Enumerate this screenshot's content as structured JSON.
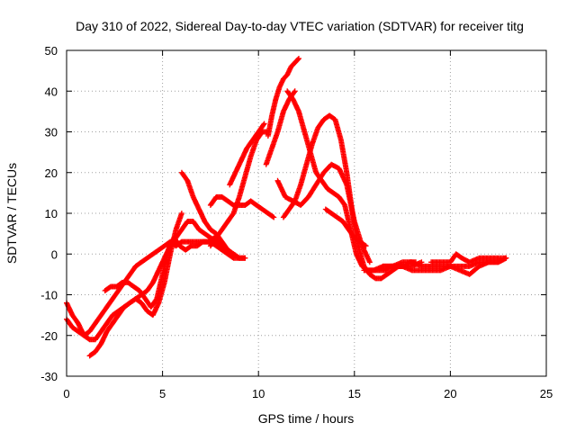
{
  "chart_data": {
    "type": "scatter",
    "title": "Day 310 of 2022, Sidereal Day-to-day VTEC variation (SDTVAR) for receiver titg",
    "xlabel": "GPS time / hours",
    "ylabel": "SDTVAR / TECUs",
    "xlim": [
      0,
      25
    ],
    "ylim": [
      -30,
      50
    ],
    "xticks": [
      0,
      5,
      10,
      15,
      20,
      25
    ],
    "yticks": [
      -30,
      -20,
      -10,
      0,
      10,
      20,
      30,
      40,
      50
    ],
    "grid": true,
    "marker": "plus",
    "color": "#ff0000",
    "series": [
      {
        "name": "track-1",
        "x": [
          0.0,
          0.3,
          0.6,
          0.9,
          1.2,
          1.5,
          1.8,
          2.1,
          2.4,
          2.7,
          3.0,
          3.3,
          3.6,
          3.9,
          4.2,
          4.5,
          4.8,
          5.1,
          5.4,
          5.7,
          6.0,
          6.3,
          6.6,
          6.9,
          7.2,
          7.5,
          7.8,
          8.1,
          8.4,
          8.7,
          9.0,
          9.3
        ],
        "y": [
          -16,
          -18,
          -19,
          -20,
          -19,
          -17,
          -15,
          -13,
          -11,
          -9,
          -7,
          -5,
          -3,
          -2,
          -1,
          0,
          1,
          2,
          3,
          2,
          3,
          3,
          3,
          3,
          3,
          3,
          2,
          1,
          0,
          -1,
          -1,
          -1
        ]
      },
      {
        "name": "track-2",
        "x": [
          0.0,
          0.3,
          0.6,
          0.9,
          1.2,
          1.5,
          1.8,
          2.1,
          2.4,
          2.7,
          3.0,
          3.3,
          3.6,
          3.9,
          4.2,
          4.5,
          4.8,
          5.1,
          5.4,
          5.7,
          6.0,
          6.3,
          6.6,
          6.9,
          7.2,
          7.5,
          7.8,
          8.1,
          8.4,
          8.7,
          9.0,
          9.3
        ],
        "y": [
          -12,
          -15,
          -17,
          -20,
          -21,
          -21,
          -19,
          -17,
          -15,
          -14,
          -13,
          -12,
          -11,
          -10,
          -9,
          -7,
          -4,
          -1,
          2,
          4,
          6,
          8,
          8,
          6,
          5,
          4,
          3,
          2,
          1,
          0,
          -1,
          -1
        ]
      },
      {
        "name": "track-3",
        "x": [
          1.2,
          1.5,
          1.8,
          2.1,
          2.4,
          2.7,
          3.0,
          3.3,
          3.6,
          3.9,
          4.2,
          4.5,
          4.8,
          5.1,
          5.4,
          5.7,
          6.0
        ],
        "y": [
          -25,
          -24,
          -22,
          -19,
          -17,
          -15,
          -13,
          -12,
          -11,
          -12,
          -14,
          -15,
          -12,
          -7,
          0,
          6,
          10
        ]
      },
      {
        "name": "track-4",
        "x": [
          2.0,
          2.3,
          2.6,
          2.9,
          3.2,
          3.5,
          3.8,
          4.1,
          4.4,
          4.7,
          5.0,
          5.3,
          5.6,
          5.9,
          6.2,
          6.5,
          6.8,
          7.1,
          7.4,
          7.7,
          8.0
        ],
        "y": [
          -9,
          -8,
          -8,
          -7,
          -7,
          -8,
          -9,
          -11,
          -13,
          -11,
          -5,
          1,
          4,
          2,
          1,
          2,
          2,
          3,
          3,
          4,
          3
        ]
      },
      {
        "name": "track-5",
        "x": [
          6.0,
          6.3,
          6.6,
          6.9,
          7.2,
          7.5,
          7.8,
          8.1,
          8.4,
          8.7,
          9.0
        ],
        "y": [
          20,
          18,
          14,
          11,
          8,
          6,
          5,
          3,
          1,
          0,
          -1
        ]
      },
      {
        "name": "track-6",
        "x": [
          7.5,
          7.8,
          8.1,
          8.4,
          8.7,
          9.0,
          9.3,
          9.6,
          9.9,
          10.2,
          10.5,
          10.8
        ],
        "y": [
          12,
          14,
          14,
          13,
          12,
          12,
          12,
          13,
          12,
          11,
          10,
          9
        ]
      },
      {
        "name": "track-7",
        "x": [
          7.5,
          7.8,
          8.1,
          8.4,
          8.7,
          9.0,
          9.3,
          9.6,
          9.9,
          10.2,
          10.5
        ],
        "y": [
          2,
          4,
          6,
          8,
          10,
          14,
          19,
          24,
          28,
          30,
          30
        ]
      },
      {
        "name": "track-8",
        "x": [
          8.5,
          8.8,
          9.1,
          9.4,
          9.7,
          10.0,
          10.3
        ],
        "y": [
          17,
          20,
          23,
          26,
          28,
          30,
          32
        ]
      },
      {
        "name": "track-9",
        "x": [
          10.4,
          10.7,
          11.0,
          11.3,
          11.6,
          11.9
        ],
        "y": [
          22,
          26,
          30,
          35,
          38,
          40
        ]
      },
      {
        "name": "track-10",
        "x": [
          10.5,
          10.7,
          10.9,
          11.1,
          11.3,
          11.5,
          11.7,
          11.9,
          12.1
        ],
        "y": [
          29,
          34,
          38,
          41,
          43,
          44,
          46,
          47,
          48
        ]
      },
      {
        "name": "track-11",
        "x": [
          11.5,
          11.8,
          12.1,
          12.4,
          12.7,
          13.0,
          13.3,
          13.6,
          13.9,
          14.2,
          14.5,
          14.8,
          15.1,
          15.4,
          15.7,
          16.0,
          16.3,
          16.6,
          16.9,
          17.2,
          17.5
        ],
        "y": [
          40,
          38,
          35,
          30,
          25,
          20,
          18,
          16,
          15,
          14,
          12,
          6,
          0,
          -3,
          -4,
          -4,
          -4,
          -4,
          -3,
          -3,
          -3
        ]
      },
      {
        "name": "track-12",
        "x": [
          11.3,
          11.6,
          11.9,
          12.2,
          12.5,
          12.8,
          13.1,
          13.4,
          13.7,
          14.0,
          14.3,
          14.6,
          14.9,
          15.2,
          15.5,
          15.8,
          16.1,
          16.4,
          16.7,
          17.0,
          17.3,
          17.6,
          17.9,
          18.2
        ],
        "y": [
          9,
          11,
          13,
          17,
          22,
          27,
          31,
          33,
          34,
          33,
          28,
          20,
          10,
          2,
          -3,
          -5,
          -6,
          -6,
          -5,
          -4,
          -3,
          -3,
          -2,
          -2
        ]
      },
      {
        "name": "track-13",
        "x": [
          11.0,
          11.4,
          11.8,
          12.2,
          12.6,
          13.0,
          13.4,
          13.8,
          14.2,
          14.6,
          15.0,
          15.4,
          15.8
        ],
        "y": [
          18,
          14,
          13,
          12,
          14,
          17,
          20,
          22,
          21,
          17,
          8,
          2,
          -2
        ]
      },
      {
        "name": "track-14",
        "x": [
          13.5,
          13.8,
          14.1,
          14.4,
          14.7,
          15.0,
          15.3,
          15.6
        ],
        "y": [
          11,
          10,
          9,
          8,
          6,
          4,
          3,
          2
        ]
      },
      {
        "name": "track-15",
        "x": [
          16.5,
          17.0,
          17.5,
          18.0,
          18.5,
          19.0,
          19.5,
          20.0,
          20.5,
          21.0,
          21.5,
          22.0,
          22.5,
          22.9
        ],
        "y": [
          -3,
          -3,
          -3,
          -4,
          -4,
          -4,
          -4,
          -3,
          -3,
          -3,
          -2,
          -2,
          -2,
          -1
        ]
      },
      {
        "name": "track-16",
        "x": [
          17.0,
          17.5,
          18.0,
          18.5,
          19.0,
          19.5,
          20.0,
          20.5,
          21.0,
          21.5,
          22.0,
          22.5,
          22.9
        ],
        "y": [
          -3,
          -2,
          -2,
          -3,
          -3,
          -3,
          -3,
          -4,
          -5,
          -3,
          -2,
          -2,
          -1
        ]
      },
      {
        "name": "track-17",
        "x": [
          19.0,
          19.5,
          20.0,
          20.3,
          20.6,
          21.0,
          21.5,
          22.0,
          22.5,
          22.9
        ],
        "y": [
          -2,
          -2,
          -2,
          0,
          -1,
          -2,
          -1,
          -1,
          -1,
          -1
        ]
      },
      {
        "name": "track-18",
        "x": [
          15.5,
          16.0,
          16.5,
          17.0,
          17.5,
          18.0,
          18.5
        ],
        "y": [
          -4,
          -4,
          -3,
          -3,
          -3,
          -3,
          -2
        ]
      }
    ]
  }
}
